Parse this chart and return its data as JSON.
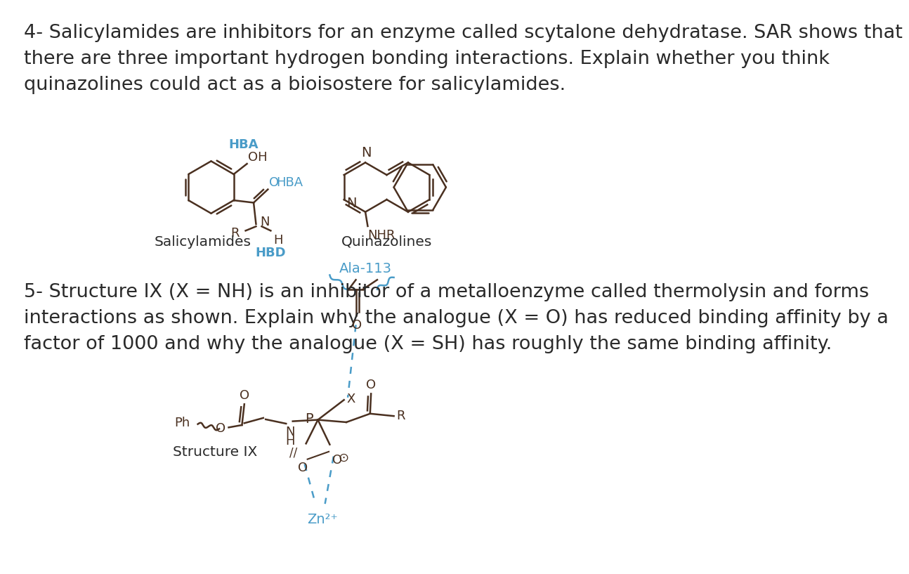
{
  "bg_color": "#ffffff",
  "blue_color": "#4a9cc8",
  "black_color": "#2a2a2a",
  "brown_color": "#4a3020",
  "q4_text": "4- Salicylamides are inhibitors for an enzyme called scytalone dehydratase. SAR shows that\nthere are three important hydrogen bonding interactions. Explain whether you think\nquinazolines could act as a bioisostere for salicylamides.",
  "q5_text": "5- Structure IX (X = NH) is an inhibitor of a metalloenzyme called thermolysin and forms\ninteractions as shown. Explain why the analogue (X = O) has reduced binding affinity by a\nfactor of 1000 and why the analogue (X = SH) has roughly the same binding affinity.",
  "font_size_main": 19.5,
  "font_size_struct": 13,
  "font_size_label": 14.5,
  "font_size_hba": 13
}
